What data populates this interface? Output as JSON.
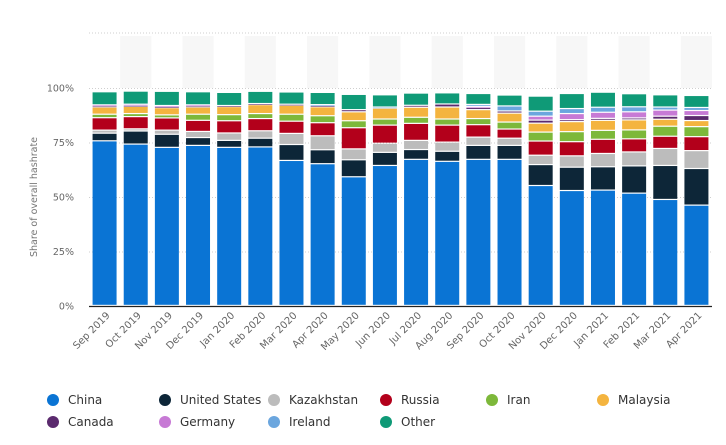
{
  "chart_data": {
    "type": "bar",
    "stacked": true,
    "title": "",
    "xlabel": "",
    "ylabel": "Share of overall hashrate",
    "ylim": [
      0,
      100
    ],
    "yticks": [
      "0%",
      "25%",
      "50%",
      "75%",
      "100%"
    ],
    "grid": true,
    "legend_position": "bottom",
    "categories": [
      "Sep 2019",
      "Oct 2019",
      "Nov 2019",
      "Dec 2019",
      "Jan 2020",
      "Feb 2020",
      "Mar 2020",
      "Apr 2020",
      "May 2020",
      "Jun 2020",
      "Jul 2020",
      "Aug 2020",
      "Sep 2020",
      "Oct 2020",
      "Nov 2020",
      "Dec 2020",
      "Jan 2021",
      "Feb 2021",
      "Mar 2021",
      "Apr 2021"
    ],
    "series": [
      {
        "name": "China",
        "color": "#0a74d4",
        "values": [
          75.5,
          74.0,
          72.5,
          73.4,
          72.5,
          72.7,
          66.5,
          65.0,
          59.0,
          64.2,
          67.0,
          66.1,
          67.0,
          67.0,
          55.0,
          52.7,
          52.9,
          51.5,
          48.6,
          46.0
        ]
      },
      {
        "name": "United States",
        "color": "#0d2638",
        "values": [
          3.5,
          6.0,
          6.0,
          3.6,
          3.2,
          4.0,
          7.3,
          6.4,
          7.8,
          6.0,
          4.5,
          4.6,
          6.4,
          6.4,
          9.6,
          10.7,
          10.7,
          12.5,
          15.6,
          16.8
        ]
      },
      {
        "name": "Kazakhstan",
        "color": "#bcbcbc",
        "values": [
          1.4,
          1.0,
          1.9,
          2.8,
          3.4,
          3.4,
          5.1,
          6.4,
          5.0,
          4.2,
          4.2,
          4.2,
          3.8,
          3.3,
          4.3,
          5.2,
          6.1,
          6.4,
          7.8,
          8.2
        ]
      },
      {
        "name": "Russia",
        "color": "#b3001b",
        "values": [
          5.7,
          5.6,
          5.6,
          5.1,
          5.6,
          5.6,
          5.6,
          6.0,
          9.7,
          8.3,
          7.8,
          7.8,
          5.7,
          4.2,
          6.5,
          6.5,
          6.5,
          6.0,
          5.6,
          6.4
        ]
      },
      {
        "name": "Iran",
        "color": "#7db83a",
        "values": [
          1.6,
          1.4,
          1.4,
          2.8,
          2.8,
          2.3,
          3.2,
          3.2,
          3.2,
          2.8,
          2.8,
          2.8,
          2.8,
          3.2,
          4.1,
          4.6,
          4.1,
          4.1,
          4.6,
          4.6
        ]
      },
      {
        "name": "Malaysia",
        "color": "#f4b43f",
        "values": [
          3.3,
          3.3,
          3.3,
          3.3,
          3.7,
          4.1,
          4.1,
          4.1,
          4.1,
          5.0,
          4.6,
          5.5,
          4.1,
          4.1,
          4.1,
          4.6,
          4.6,
          4.6,
          3.2,
          2.8
        ]
      },
      {
        "name": "Canada",
        "color": "#5b2a6e",
        "values": [
          0.5,
          0.5,
          0.5,
          0.5,
          0.5,
          0.5,
          0.5,
          0.5,
          1.0,
          0.0,
          0.9,
          1.4,
          1.0,
          1.0,
          1.4,
          0.9,
          0.9,
          0.9,
          1.4,
          2.3
        ]
      },
      {
        "name": "Germany",
        "color": "#c77ad5",
        "values": [
          0.5,
          0.5,
          0.5,
          0.5,
          0.0,
          0.0,
          0.0,
          0.0,
          0.0,
          0.0,
          0.0,
          0.0,
          0.5,
          0.0,
          1.8,
          2.8,
          2.8,
          2.8,
          2.8,
          2.3
        ]
      },
      {
        "name": "Ireland",
        "color": "#6ba6de",
        "values": [
          0.0,
          0.0,
          0.0,
          0.0,
          0.0,
          0.0,
          0.0,
          0.5,
          0.0,
          0.5,
          0.0,
          0.0,
          0.9,
          2.3,
          2.3,
          2.3,
          2.3,
          2.3,
          1.4,
          1.4
        ]
      },
      {
        "name": "Other",
        "color": "#0f9a77",
        "values": [
          6.0,
          6.0,
          6.5,
          6.0,
          6.0,
          5.6,
          5.6,
          5.6,
          7.0,
          5.6,
          5.6,
          5.1,
          5.0,
          5.0,
          6.9,
          6.9,
          6.9,
          6.0,
          5.6,
          5.5
        ]
      }
    ]
  },
  "legend": [
    {
      "label": "China",
      "color": "#0a74d4"
    },
    {
      "label": "United States",
      "color": "#0d2638"
    },
    {
      "label": "Kazakhstan",
      "color": "#bcbcbc"
    },
    {
      "label": "Russia",
      "color": "#b3001b"
    },
    {
      "label": "Iran",
      "color": "#7db83a"
    },
    {
      "label": "Malaysia",
      "color": "#f4b43f"
    },
    {
      "label": "Canada",
      "color": "#5b2a6e"
    },
    {
      "label": "Germany",
      "color": "#c77ad5"
    },
    {
      "label": "Ireland",
      "color": "#6ba6de"
    },
    {
      "label": "Other",
      "color": "#0f9a77"
    }
  ]
}
